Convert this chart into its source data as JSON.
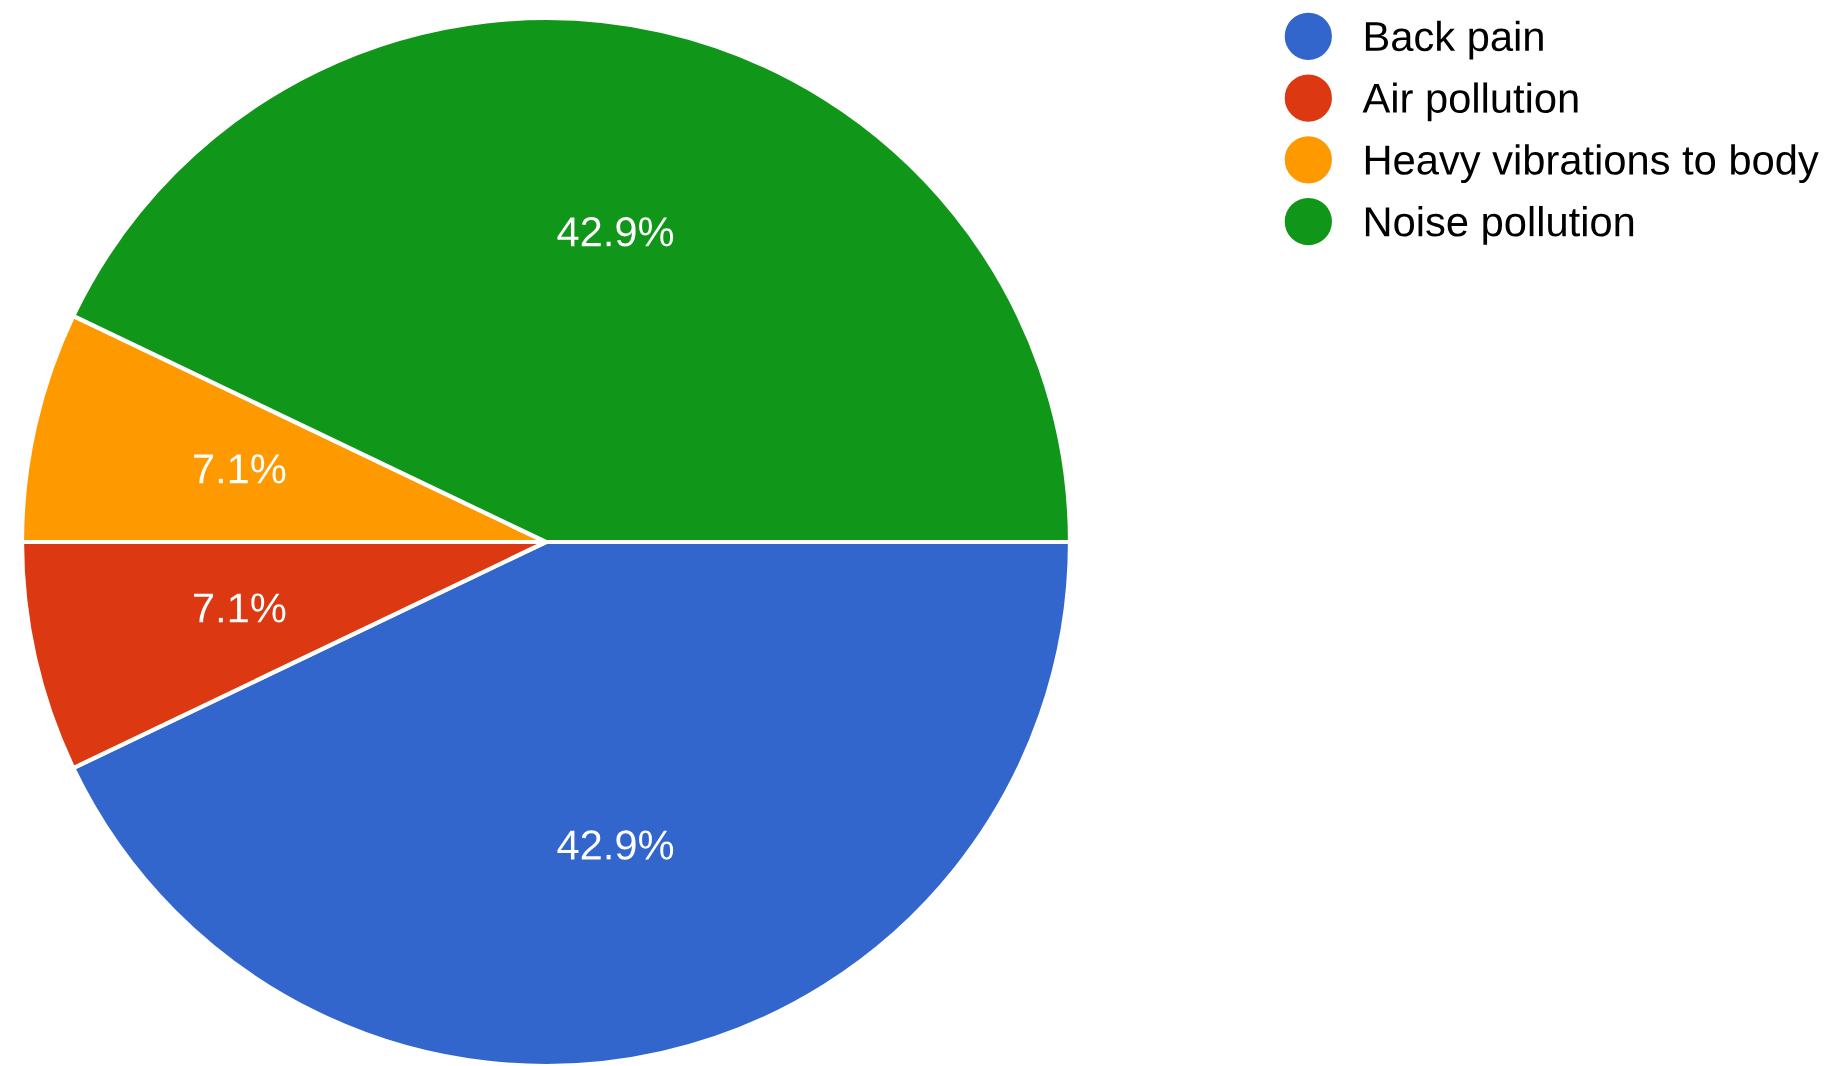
{
  "chart_data": {
    "type": "pie",
    "categories": [
      "Back pain",
      "Air pollution",
      "Heavy vibrations to body",
      "Noise pollution"
    ],
    "values": [
      42.9,
      7.1,
      7.1,
      42.9
    ],
    "colors": [
      "#3366cc",
      "#dc3912",
      "#ff9900",
      "#109618"
    ],
    "value_labels": [
      "42.9%",
      "7.1%",
      "7.1%",
      "42.9%"
    ],
    "legend": "top right"
  }
}
